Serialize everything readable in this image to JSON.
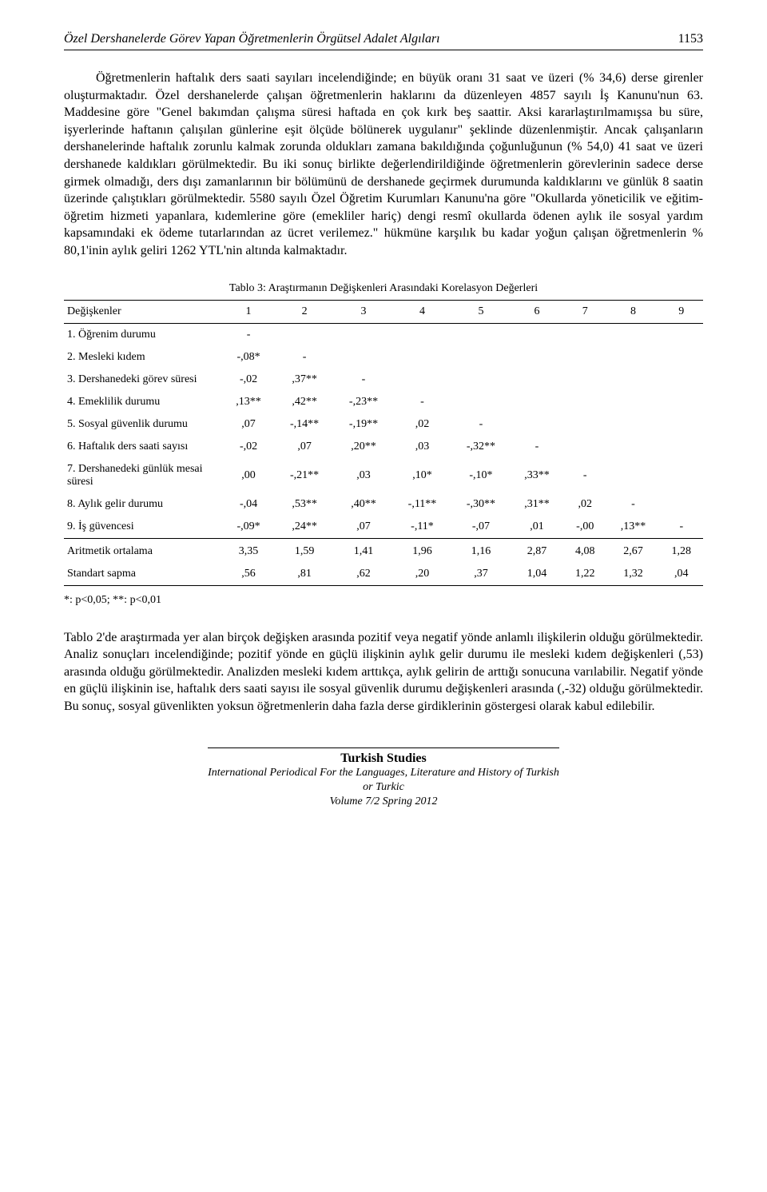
{
  "header": {
    "running_title": "Özel Dershanelerde Görev Yapan Öğretmenlerin Örgütsel Adalet Algıları",
    "page_number": "1153"
  },
  "paragraph1": "Öğretmenlerin haftalık ders saati sayıları incelendiğinde; en büyük oranı 31 saat ve üzeri (% 34,6) derse girenler oluşturmaktadır. Özel dershanelerde çalışan öğretmenlerin haklarını da düzenleyen 4857 sayılı İş Kanunu'nun 63. Maddesine göre \"Genel bakımdan çalışma süresi haftada en çok kırk beş saattir. Aksi kararlaştırılmamışsa bu süre, işyerlerinde haftanın çalışılan günlerine eşit ölçüde bölünerek uygulanır\" şeklinde düzenlenmiştir. Ancak çalışanların dershanelerinde haftalık zorunlu kalmak zorunda oldukları zamana bakıldığında çoğunluğunun (% 54,0) 41 saat ve üzeri dershanede kaldıkları görülmektedir. Bu iki sonuç birlikte değerlendirildiğinde öğretmenlerin görevlerinin sadece derse girmek olmadığı, ders dışı zamanlarının bir bölümünü de dershanede geçirmek durumunda kaldıklarını ve günlük 8 saatin üzerinde çalıştıkları görülmektedir. 5580 sayılı Özel Öğretim Kurumları Kanunu'na göre \"Okullarda yöneticilik ve eğitim-öğretim hizmeti yapanlara, kıdemlerine göre (emekliler hariç) dengi resmî okullarda ödenen aylık ile sosyal yardım kapsamındaki ek ödeme tutarlarından az ücret verilemez.\" hükmüne karşılık bu kadar yoğun çalışan öğretmenlerin % 80,1'inin aylık geliri 1262 YTL'nin altında kalmaktadır.",
  "table": {
    "caption": "Tablo 3: Araştırmanın Değişkenleri Arasındaki Korelasyon Değerleri",
    "header_label": "Değişkenler",
    "cols": [
      "1",
      "2",
      "3",
      "4",
      "5",
      "6",
      "7",
      "8",
      "9"
    ],
    "rows": [
      {
        "label": "1. Öğrenim durumu",
        "cells": [
          "-",
          "",
          "",
          "",
          "",
          "",
          "",
          "",
          ""
        ]
      },
      {
        "label": "2. Mesleki kıdem",
        "cells": [
          "-,08*",
          "-",
          "",
          "",
          "",
          "",
          "",
          "",
          ""
        ]
      },
      {
        "label": "3. Dershanedeki görev süresi",
        "cells": [
          "-,02",
          ",37**",
          "-",
          "",
          "",
          "",
          "",
          "",
          ""
        ]
      },
      {
        "label": "4. Emeklilik durumu",
        "cells": [
          ",13**",
          ",42**",
          "-,23**",
          "-",
          "",
          "",
          "",
          "",
          ""
        ]
      },
      {
        "label": "5. Sosyal güvenlik durumu",
        "cells": [
          ",07",
          "-,14**",
          "-,19**",
          ",02",
          "-",
          "",
          "",
          "",
          ""
        ]
      },
      {
        "label": "6. Haftalık ders saati sayısı",
        "cells": [
          "-,02",
          ",07",
          ",20**",
          ",03",
          "-,32**",
          "-",
          "",
          "",
          ""
        ]
      },
      {
        "label": "7. Dershanedeki günlük mesai süresi",
        "cells": [
          ",00",
          "-,21**",
          ",03",
          ",10*",
          "-,10*",
          ",33**",
          "-",
          "",
          ""
        ]
      },
      {
        "label": "8. Aylık gelir durumu",
        "cells": [
          "-,04",
          ",53**",
          ",40**",
          "-,11**",
          "-,30**",
          ",31**",
          ",02",
          "-",
          ""
        ]
      },
      {
        "label": "9. İş güvencesi",
        "cells": [
          "-,09*",
          ",24**",
          ",07",
          "-,11*",
          "-,07",
          ",01",
          "-,00",
          ",13**",
          "-"
        ]
      }
    ],
    "summary": [
      {
        "label": "Aritmetik ortalama",
        "cells": [
          "3,35",
          "1,59",
          "1,41",
          "1,96",
          "1,16",
          "2,87",
          "4,08",
          "2,67",
          "1,28"
        ]
      },
      {
        "label": "Standart sapma",
        "cells": [
          ",56",
          ",81",
          ",62",
          ",20",
          ",37",
          "1,04",
          "1,22",
          "1,32",
          ",04"
        ]
      }
    ],
    "footnote": "*: p<0,05; **: p<0,01"
  },
  "paragraph2": "Tablo 2'de araştırmada yer alan birçok değişken arasında pozitif veya negatif yönde anlamlı ilişkilerin olduğu görülmektedir. Analiz sonuçları incelendiğinde; pozitif yönde en güçlü ilişkinin aylık gelir durumu ile mesleki kıdem değişkenleri (,53) arasında olduğu görülmektedir. Analizden mesleki kıdem arttıkça, aylık gelirin de arttığı sonucuna varılabilir. Negatif yönde en güçlü ilişkinin ise, haftalık ders saati sayısı ile sosyal güvenlik durumu değişkenleri arasında (,-32) olduğu görülmektedir. Bu sonuç, sosyal güvenlikten yoksun öğretmenlerin daha fazla derse girdiklerinin göstergesi olarak kabul edilebilir.",
  "footer": {
    "title": "Turkish Studies",
    "line1": "International Periodical For the Languages, Literature and History of Turkish or Turkic",
    "line2": "Volume 7/2 Spring 2012"
  }
}
